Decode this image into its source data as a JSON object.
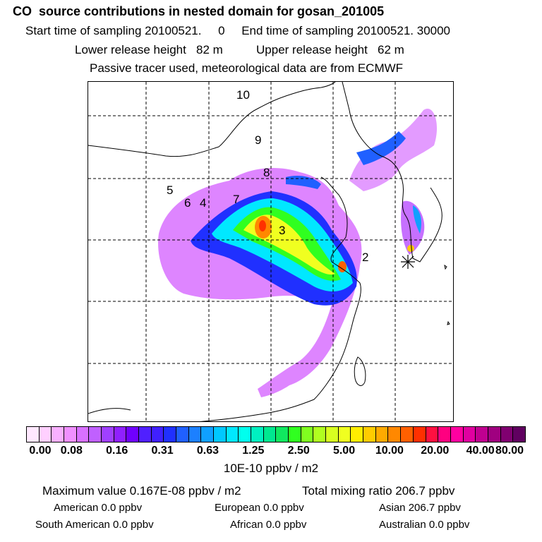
{
  "header": {
    "title": "CO  source contributions in nested domain for gosan_201005",
    "sampling_start_label": "Start time of sampling 20100521.     0",
    "sampling_end_label": "End time of sampling 20100521. 30000",
    "lower_release": "Lower release height   82 m",
    "upper_release": "Upper release height   62 m",
    "info": "Passive tracer used, meteorological data are from ECMWF"
  },
  "map": {
    "region_labels": [
      "10",
      "9",
      "8",
      "5",
      "6",
      "4",
      "7",
      "3",
      "2"
    ]
  },
  "colorbar": {
    "ticks": [
      "0.00",
      "0.08",
      "0.16",
      "0.31",
      "0.63",
      "1.25",
      "2.50",
      "5.00",
      "10.00",
      "20.00",
      "40.00",
      "80.00"
    ],
    "colors": [
      "#ffe8ff",
      "#ffd0ff",
      "#f8b0ff",
      "#f090ff",
      "#d870ff",
      "#c060ff",
      "#a040ff",
      "#9020ff",
      "#7000ff",
      "#5020ff",
      "#4020ff",
      "#2030ff",
      "#2060ff",
      "#1c80ff",
      "#10a0ff",
      "#00c8ff",
      "#00e8ff",
      "#00ffee",
      "#00f0c0",
      "#00e890",
      "#10e860",
      "#30ff20",
      "#80ff20",
      "#b0ff20",
      "#d8ff20",
      "#f0ff20",
      "#ffee00",
      "#ffcc00",
      "#ffaa00",
      "#ff8800",
      "#ff6000",
      "#ff3000",
      "#ff1040",
      "#ff0080",
      "#ff00a0",
      "#e000a0",
      "#c00090",
      "#a00080",
      "#800070",
      "#600060"
    ],
    "units": "10E-10 ppbv / m2"
  },
  "stats": {
    "max_label": "Maximum value  0.167E-08 ppbv / m2",
    "total_label": "Total mixing ratio      206.7 ppbv",
    "american": "American        0.0 ppbv",
    "european": "European        0.0 ppbv",
    "asian": "Asian      206.7 ppbv",
    "south_american": "South American        0.0 ppbv",
    "african": "African        0.0 ppbv",
    "australian": "Australian        0.0 ppbv"
  }
}
